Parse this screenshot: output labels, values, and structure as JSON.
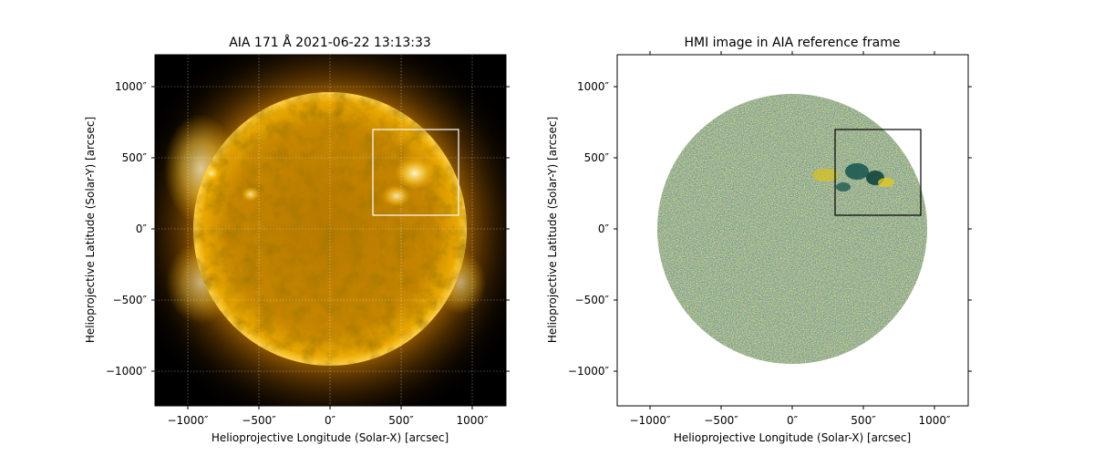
{
  "figure": {
    "panels": [
      {
        "id": "aia",
        "title": "AIA 171 Å 2021-06-22 13:13:33",
        "xlabel": "Helioprojective Longitude (Solar-X) [arcsec]",
        "ylabel": "Helioprojective Latitude (Solar-Y) [arcsec]",
        "colormap": "sdoaia171",
        "background": "#000000",
        "box_color": "#ffffff",
        "grid": true
      },
      {
        "id": "hmi",
        "title": "HMI image in AIA reference frame",
        "xlabel": "Helioprojective Longitude (Solar-X) [arcsec]",
        "ylabel": "Helioprojective Latitude (Solar-Y) [arcsec]",
        "colormap": "hmimag",
        "background": "#ffffff",
        "box_color": "#000000",
        "grid": false
      }
    ],
    "x_ticks": [
      "−1000″",
      "−500″",
      "0″",
      "500″",
      "1000″"
    ],
    "y_ticks": [
      "1000″",
      "500″",
      "0″",
      "−500″",
      "−1000″"
    ],
    "x_tick_values": [
      -1000,
      -500,
      0,
      500,
      1000
    ],
    "y_tick_values": [
      1000,
      500,
      0,
      -500,
      -1000
    ],
    "axis_range_arcsec": [
      -1230,
      1230
    ],
    "solar_radius_arcsec": 950,
    "region_box_arcsec": {
      "x": [
        300,
        900
      ],
      "y": [
        100,
        700
      ]
    }
  }
}
